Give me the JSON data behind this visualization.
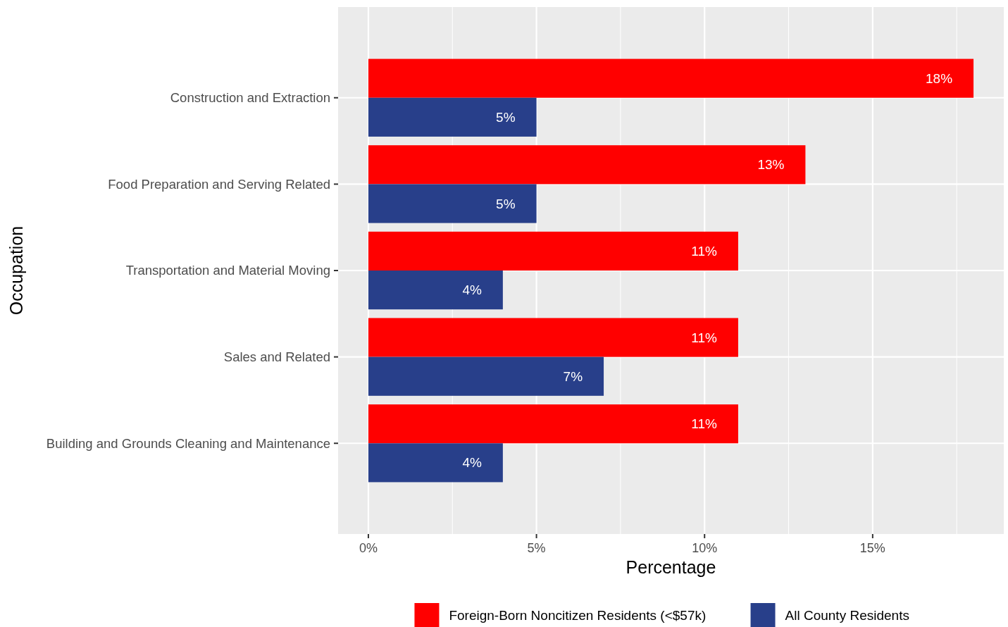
{
  "chart_data": {
    "type": "bar",
    "orientation": "horizontal",
    "xlabel": "Percentage",
    "ylabel": "Occupation",
    "categories": [
      "Construction and Extraction",
      "Food Preparation and Serving Related",
      "Transportation and Material Moving",
      "Sales and Related",
      "Building and Grounds Cleaning and Maintenance"
    ],
    "series": [
      {
        "name": "Foreign-Born Noncitizen Residents (<$57k)",
        "color": "#ff0000",
        "values": [
          18,
          13,
          11,
          11,
          11
        ],
        "value_labels": [
          "18%",
          "13%",
          "11%",
          "11%",
          "11%"
        ]
      },
      {
        "name": "All County Residents",
        "color": "#283f8a",
        "values": [
          5,
          5,
          4,
          7,
          4
        ],
        "value_labels": [
          "5%",
          "5%",
          "4%",
          "7%",
          "4%"
        ]
      }
    ],
    "xlim": [
      -0.9,
      18.9
    ],
    "xticks": [
      {
        "value": 0,
        "label": "0%"
      },
      {
        "value": 5,
        "label": "5%"
      },
      {
        "value": 10,
        "label": "10%"
      },
      {
        "value": 15,
        "label": "15%"
      }
    ],
    "grid": true,
    "legend": "bottom"
  }
}
